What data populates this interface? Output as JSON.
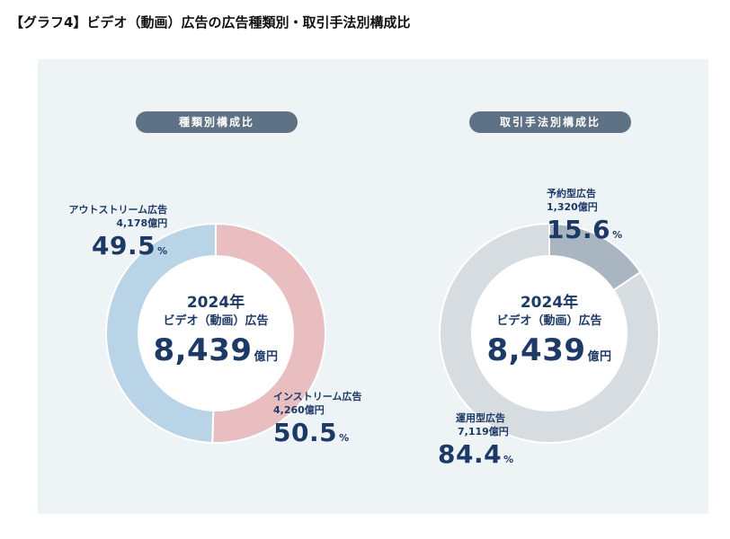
{
  "page_title": "【グラフ4】ビデオ（動画）広告の広告種類別・取引手法別構成比",
  "chart_data": [
    {
      "type": "pie",
      "donut": true,
      "pill_label": "種類別構成比",
      "center": {
        "year": "2024年",
        "label": "ビデオ（動画）広告",
        "total": "8,439",
        "unit": "億円"
      },
      "start_angle_deg": 0,
      "slices": [
        {
          "name": "インストリーム広告",
          "amount": "4,260億円",
          "value": 50.5,
          "color": "#e8bec0"
        },
        {
          "name": "アウトストリーム広告",
          "amount": "4,178億円",
          "value": 49.5,
          "color": "#b9d4e7"
        }
      ]
    },
    {
      "type": "pie",
      "donut": true,
      "pill_label": "取引手法別構成比",
      "center": {
        "year": "2024年",
        "label": "ビデオ（動画）広告",
        "total": "8,439",
        "unit": "億円"
      },
      "start_angle_deg": 0,
      "slices": [
        {
          "name": "予約型広告",
          "amount": "1,320億円",
          "value": 15.6,
          "color": "#a9b6c1"
        },
        {
          "name": "運用型広告",
          "amount": "7,119億円",
          "value": 84.4,
          "color": "#d6dcdf"
        }
      ]
    }
  ],
  "pct_unit": "%"
}
